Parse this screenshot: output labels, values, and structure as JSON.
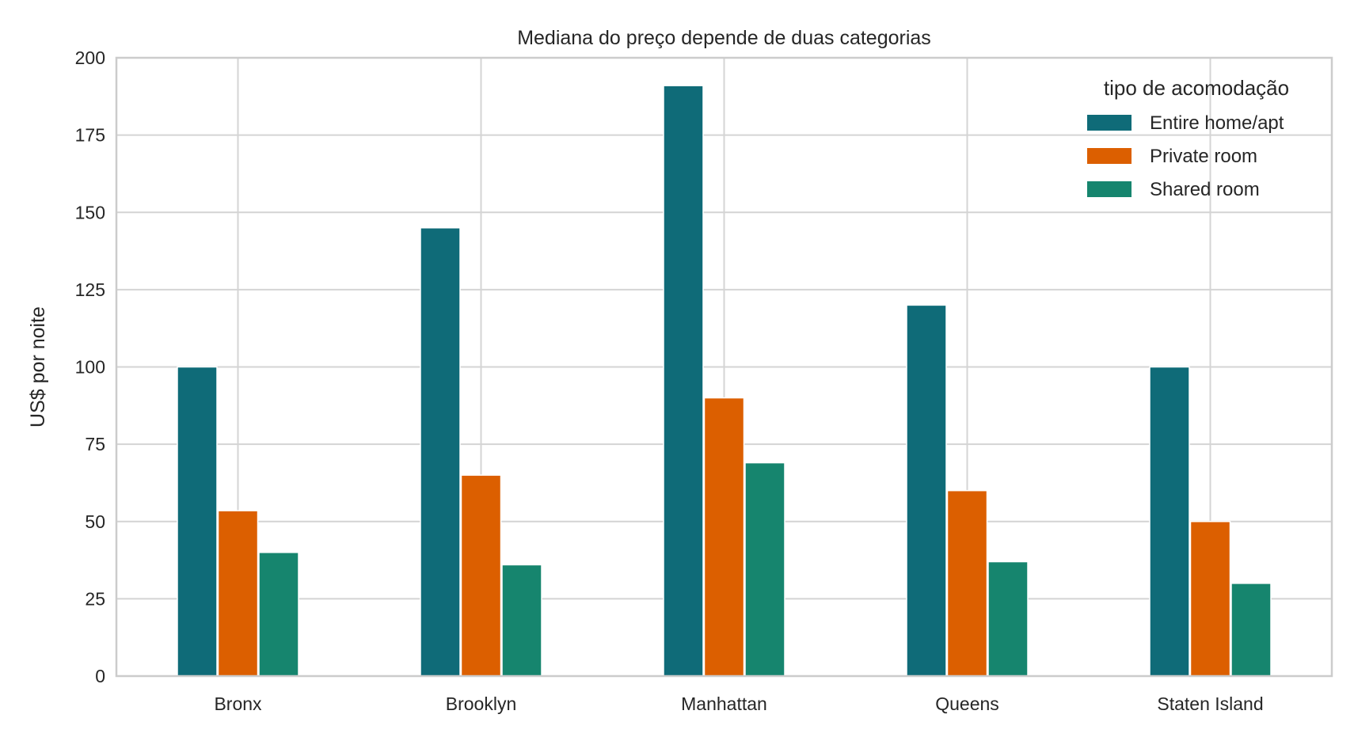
{
  "chart_data": {
    "type": "bar",
    "title": "Mediana do preço depende de duas categorias",
    "xlabel": "",
    "ylabel": "US$ por noite",
    "ylim": [
      0,
      200
    ],
    "yticks": [
      0,
      25,
      50,
      75,
      100,
      125,
      150,
      175,
      200
    ],
    "grid": true,
    "legend": {
      "title": "tipo de acomodação",
      "placement": "top-right"
    },
    "categories": [
      "Bronx",
      "Brooklyn",
      "Manhattan",
      "Queens",
      "Staten Island"
    ],
    "series": [
      {
        "name": "Entire home/apt",
        "color": "#0f6b78",
        "values": [
          100,
          145,
          191,
          120,
          100
        ]
      },
      {
        "name": "Private room",
        "color": "#dc5f00",
        "values": [
          53.5,
          65,
          90,
          60,
          50
        ]
      },
      {
        "name": "Shared room",
        "color": "#16856e",
        "values": [
          40,
          36,
          69,
          37,
          30
        ]
      }
    ]
  }
}
